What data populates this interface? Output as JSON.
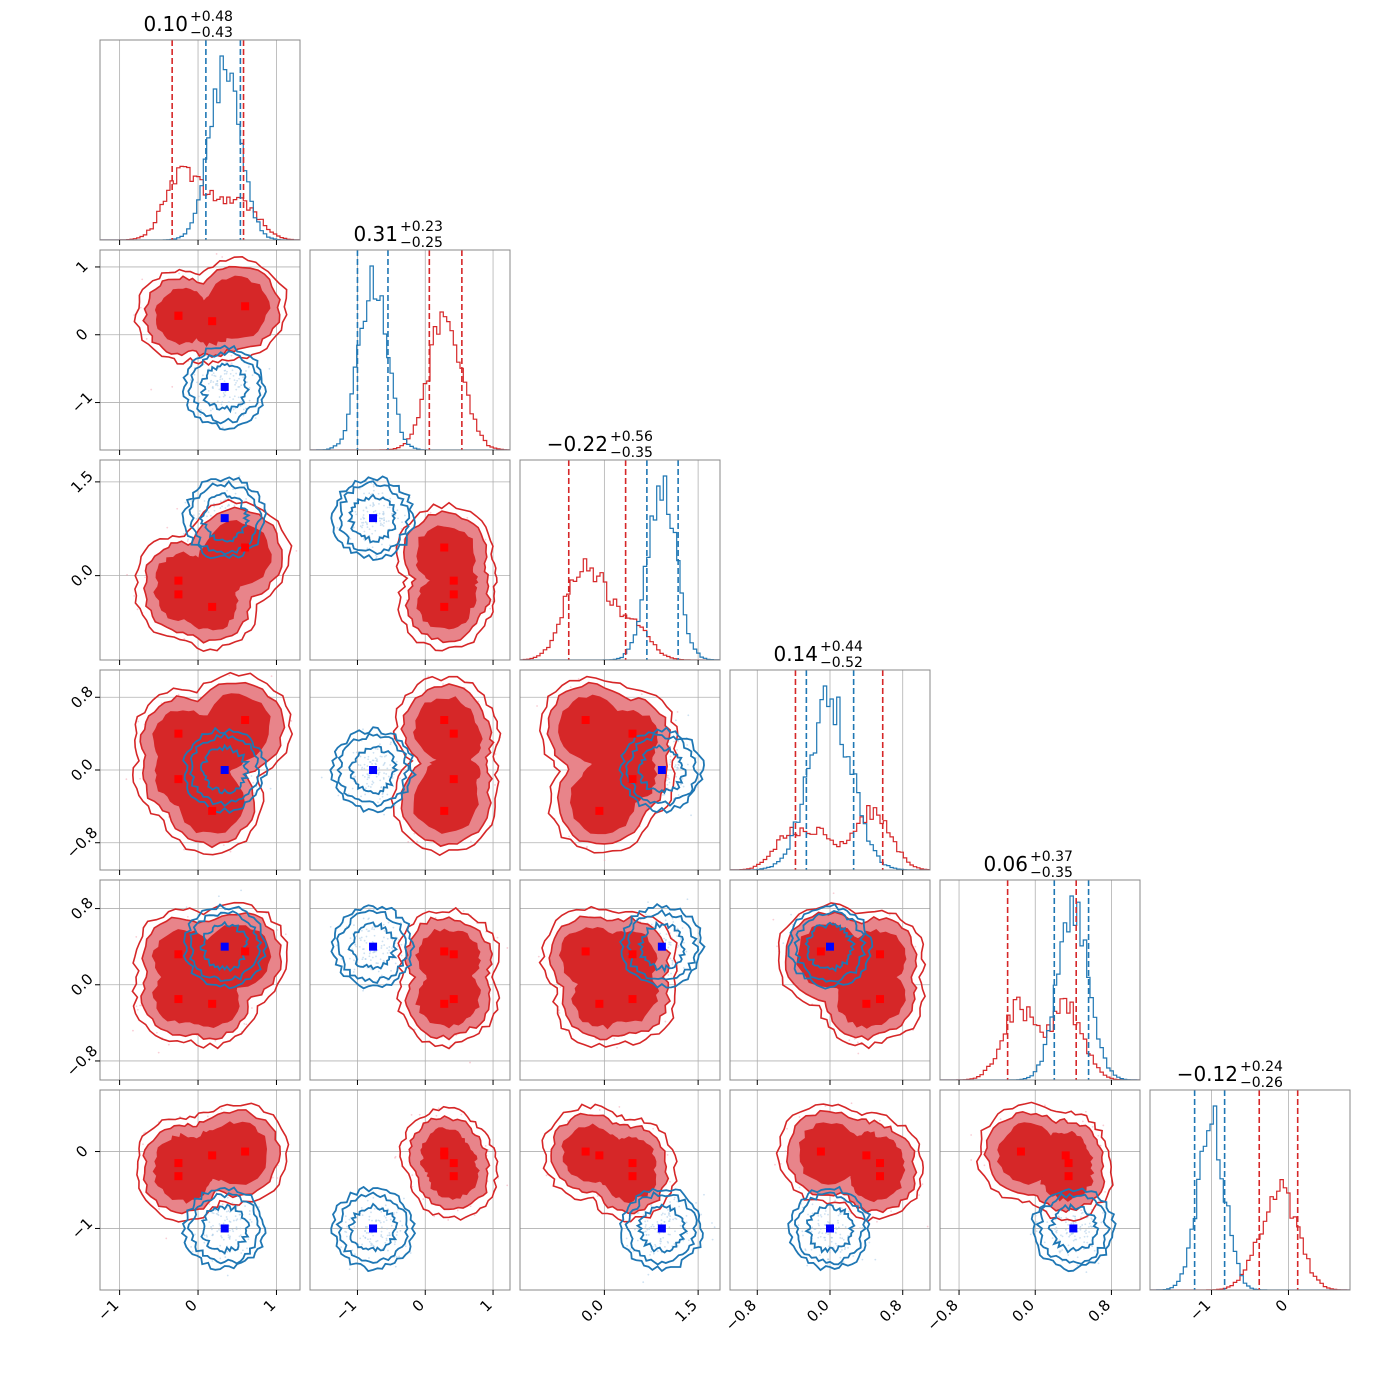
{
  "chart_data": {
    "type": "corner",
    "n_params": 6,
    "colors": {
      "red": "#d62728",
      "blue": "#1f77b4",
      "red_fill": "#e8848a",
      "marker_red": "#ff0000",
      "marker_blue": "#0000ff"
    },
    "grid": true,
    "ranges": [
      [
        -1.25,
        1.3
      ],
      [
        -1.7,
        1.25
      ],
      [
        -1.35,
        1.85
      ],
      [
        -1.1,
        1.1
      ],
      [
        -1.0,
        1.1
      ],
      [
        -1.8,
        0.8
      ]
    ],
    "ticks": [
      [
        {
          "v": -1,
          "t": "−1"
        },
        {
          "v": 0,
          "t": "0"
        },
        {
          "v": 1,
          "t": "1"
        }
      ],
      [
        {
          "v": -1,
          "t": "−1"
        },
        {
          "v": 0,
          "t": "0"
        },
        {
          "v": 1,
          "t": "1"
        }
      ],
      [
        {
          "v": 0,
          "t": "0.0"
        },
        {
          "v": 1.5,
          "t": "1.5"
        }
      ],
      [
        {
          "v": -0.8,
          "t": "−0.8"
        },
        {
          "v": 0,
          "t": "0.0"
        },
        {
          "v": 0.8,
          "t": "0.8"
        }
      ],
      [
        {
          "v": -0.8,
          "t": "−0.8"
        },
        {
          "v": 0,
          "t": "0.0"
        },
        {
          "v": 0.8,
          "t": "0.8"
        }
      ],
      [
        {
          "v": -1,
          "t": "−1"
        },
        {
          "v": 0,
          "t": "0"
        }
      ]
    ],
    "titles": [
      {
        "median": "0.10",
        "plus": "+0.48",
        "minus": "−0.43"
      },
      {
        "median": "0.31",
        "plus": "+0.23",
        "minus": "−0.25"
      },
      {
        "median": "−0.22",
        "plus": "+0.56",
        "minus": "−0.35"
      },
      {
        "median": "0.14",
        "plus": "+0.44",
        "minus": "−0.52"
      },
      {
        "median": "0.06",
        "plus": "+0.37",
        "minus": "−0.35"
      },
      {
        "median": "−0.12",
        "plus": "+0.24",
        "minus": "−0.26"
      }
    ],
    "quantiles": {
      "red": [
        [
          -0.33,
          0.58
        ],
        [
          0.06,
          0.54
        ],
        [
          -0.57,
          0.34
        ],
        [
          -0.38,
          0.58
        ],
        [
          -0.29,
          0.43
        ],
        [
          -0.38,
          0.12
        ]
      ],
      "blue": [
        [
          0.1,
          0.54
        ],
        [
          -1.0,
          -0.55
        ],
        [
          0.68,
          1.18
        ],
        [
          -0.26,
          0.26
        ],
        [
          0.2,
          0.56
        ],
        [
          -1.22,
          -0.83
        ]
      ]
    },
    "blue_means": [
      0.34,
      -0.77,
      0.92,
      0.0,
      0.4,
      -1.0
    ],
    "red_modes": [
      [
        -0.25,
        0.18,
        0.6,
        -0.2
      ],
      [
        0.42,
        0.28,
        0.28,
        0.2
      ],
      [
        0.45,
        -0.08,
        -0.3,
        -0.5
      ],
      [
        0.55,
        0.4,
        -0.1,
        -0.45
      ],
      [
        0.35,
        0.32,
        -0.15,
        -0.2
      ],
      [
        0.0,
        -0.15,
        -0.32,
        -0.05
      ]
    ],
    "red_mode_pairs": [
      [
        0,
        1
      ],
      [
        2,
        0
      ],
      [
        0,
        2
      ],
      [
        1,
        3
      ]
    ],
    "hist_peak_rel": [
      [
        0.4,
        1.0
      ],
      [
        0.75,
        1.0
      ],
      [
        0.55,
        1.0
      ],
      [
        0.35,
        1.0
      ],
      [
        0.45,
        1.0
      ],
      [
        0.6,
        1.0
      ]
    ]
  }
}
